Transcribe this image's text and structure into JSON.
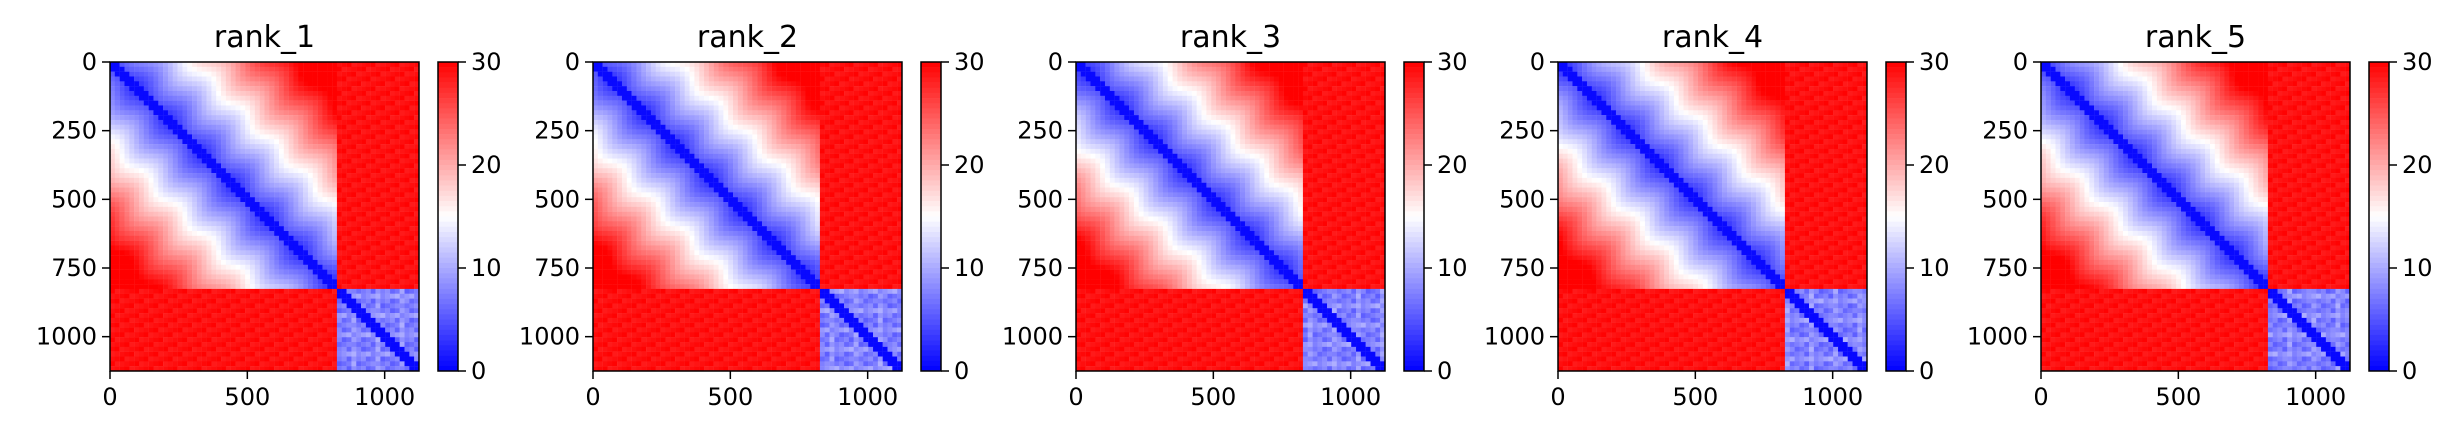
{
  "figure": {
    "title": "",
    "panels": [
      {
        "title": "rank_1"
      },
      {
        "title": "rank_2"
      },
      {
        "title": "rank_3"
      },
      {
        "title": "rank_4"
      },
      {
        "title": "rank_5"
      }
    ]
  },
  "chart_data": [
    {
      "type": "heatmap",
      "title": "rank_1",
      "xlabel": "",
      "ylabel": "",
      "xlim": [
        0,
        1125
      ],
      "ylim": [
        1125,
        0
      ],
      "xticks": [
        0,
        500,
        1000
      ],
      "yticks": [
        0,
        250,
        500,
        750,
        1000
      ],
      "colorbar": {
        "min": 0,
        "max": 30,
        "ticks": [
          0,
          10,
          20,
          30
        ],
        "colormap": "bwr"
      },
      "blocks": [
        {
          "rows": [
            0,
            800
          ],
          "cols": [
            0,
            800
          ],
          "pattern": "low near diagonal, increasing away from diagonal",
          "range": [
            0,
            30
          ]
        },
        {
          "rows": [
            0,
            800
          ],
          "cols": [
            800,
            1125
          ],
          "pattern": "high",
          "value": 30
        },
        {
          "rows": [
            800,
            1125
          ],
          "cols": [
            0,
            800
          ],
          "pattern": "high",
          "value": 30
        },
        {
          "rows": [
            800,
            1125
          ],
          "cols": [
            800,
            1125
          ],
          "pattern": "low with striped structure",
          "range": [
            0,
            10
          ]
        }
      ]
    },
    {
      "type": "heatmap",
      "title": "rank_2",
      "xlabel": "",
      "ylabel": "",
      "xlim": [
        0,
        1125
      ],
      "ylim": [
        1125,
        0
      ],
      "xticks": [
        0,
        500,
        1000
      ],
      "yticks": [
        0,
        250,
        500,
        750,
        1000
      ],
      "colorbar": {
        "min": 0,
        "max": 30,
        "ticks": [
          0,
          10,
          20,
          30
        ],
        "colormap": "bwr"
      },
      "blocks": [
        {
          "rows": [
            0,
            800
          ],
          "cols": [
            0,
            800
          ],
          "pattern": "low near diagonal, increasing away from diagonal",
          "range": [
            0,
            30
          ]
        },
        {
          "rows": [
            0,
            800
          ],
          "cols": [
            800,
            1125
          ],
          "pattern": "high",
          "value": 30
        },
        {
          "rows": [
            800,
            1125
          ],
          "cols": [
            0,
            800
          ],
          "pattern": "high",
          "value": 30
        },
        {
          "rows": [
            800,
            1125
          ],
          "cols": [
            800,
            1125
          ],
          "pattern": "low with striped structure",
          "range": [
            0,
            10
          ]
        }
      ]
    },
    {
      "type": "heatmap",
      "title": "rank_3",
      "xlabel": "",
      "ylabel": "",
      "xlim": [
        0,
        1125
      ],
      "ylim": [
        1125,
        0
      ],
      "xticks": [
        0,
        500,
        1000
      ],
      "yticks": [
        0,
        250,
        500,
        750,
        1000
      ],
      "colorbar": {
        "min": 0,
        "max": 30,
        "ticks": [
          0,
          10,
          20,
          30
        ],
        "colormap": "bwr"
      },
      "blocks": [
        {
          "rows": [
            0,
            800
          ],
          "cols": [
            0,
            800
          ],
          "pattern": "low near diagonal, increasing away from diagonal",
          "range": [
            0,
            30
          ]
        },
        {
          "rows": [
            0,
            800
          ],
          "cols": [
            800,
            1125
          ],
          "pattern": "high",
          "value": 30
        },
        {
          "rows": [
            800,
            1125
          ],
          "cols": [
            0,
            800
          ],
          "pattern": "high",
          "value": 30
        },
        {
          "rows": [
            800,
            1125
          ],
          "cols": [
            800,
            1125
          ],
          "pattern": "low with striped structure",
          "range": [
            0,
            10
          ]
        }
      ]
    },
    {
      "type": "heatmap",
      "title": "rank_4",
      "xlabel": "",
      "ylabel": "",
      "xlim": [
        0,
        1125
      ],
      "ylim": [
        1125,
        0
      ],
      "xticks": [
        0,
        500,
        1000
      ],
      "yticks": [
        0,
        250,
        500,
        750,
        1000
      ],
      "colorbar": {
        "min": 0,
        "max": 30,
        "ticks": [
          0,
          10,
          20,
          30
        ],
        "colormap": "bwr"
      },
      "blocks": [
        {
          "rows": [
            0,
            800
          ],
          "cols": [
            0,
            800
          ],
          "pattern": "low near diagonal, increasing away from diagonal",
          "range": [
            0,
            30
          ]
        },
        {
          "rows": [
            0,
            800
          ],
          "cols": [
            800,
            1125
          ],
          "pattern": "high",
          "value": 30
        },
        {
          "rows": [
            800,
            1125
          ],
          "cols": [
            0,
            800
          ],
          "pattern": "high",
          "value": 30
        },
        {
          "rows": [
            800,
            1125
          ],
          "cols": [
            800,
            1125
          ],
          "pattern": "low with striped structure",
          "range": [
            0,
            10
          ]
        }
      ]
    },
    {
      "type": "heatmap",
      "title": "rank_5",
      "xlabel": "",
      "ylabel": "",
      "xlim": [
        0,
        1125
      ],
      "ylim": [
        1125,
        0
      ],
      "xticks": [
        0,
        500,
        1000
      ],
      "yticks": [
        0,
        250,
        500,
        750,
        1000
      ],
      "colorbar": {
        "min": 0,
        "max": 30,
        "ticks": [
          0,
          10,
          20,
          30
        ],
        "colormap": "bwr"
      },
      "blocks": [
        {
          "rows": [
            0,
            800
          ],
          "cols": [
            0,
            800
          ],
          "pattern": "low near diagonal, increasing away from diagonal",
          "range": [
            0,
            30
          ]
        },
        {
          "rows": [
            0,
            800
          ],
          "cols": [
            800,
            1125
          ],
          "pattern": "high",
          "value": 30
        },
        {
          "rows": [
            800,
            1125
          ],
          "cols": [
            0,
            800
          ],
          "pattern": "high",
          "value": 30
        },
        {
          "rows": [
            800,
            1125
          ],
          "cols": [
            800,
            1125
          ],
          "pattern": "low with striped structure",
          "range": [
            0,
            10
          ]
        }
      ]
    }
  ]
}
